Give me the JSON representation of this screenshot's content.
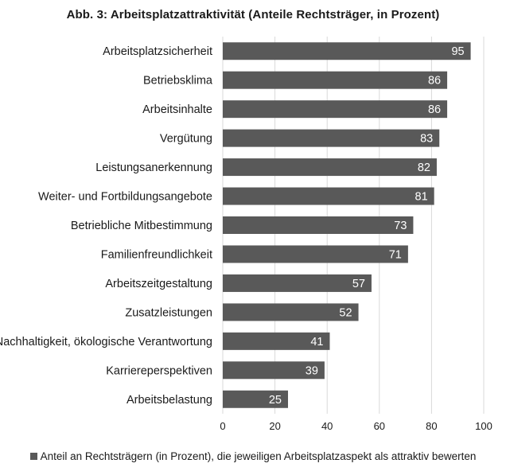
{
  "chart_data": {
    "type": "bar",
    "orientation": "horizontal",
    "title": "Abb. 3: Arbeitsplatzattraktivität (Anteile Rechtsträger, in Prozent)",
    "categories": [
      "Arbeitsplatzsicherheit",
      "Betriebsklima",
      "Arbeitsinhalte",
      "Vergütung",
      "Leistungsanerkennung",
      "Weiter- und Fortbildungsangebote",
      "Betriebliche Mitbestimmung",
      "Familienfreundlichkeit",
      "Arbeitszeitgestaltung",
      "Zusatzleistungen",
      "Nachhaltigkeit, ökologische Verantwortung",
      "Karriereperspektiven",
      "Arbeitsbelastung"
    ],
    "series": [
      {
        "name": "Anteil an Rechtsträgern (in Prozent), die jeweiligen Arbeitsplatzaspekt als attraktiv bewerten",
        "values": [
          95,
          86,
          86,
          83,
          82,
          81,
          73,
          71,
          57,
          52,
          41,
          39,
          25
        ]
      }
    ],
    "x_ticks": [
      0,
      20,
      40,
      60,
      80,
      100
    ],
    "xlim": [
      0,
      100
    ],
    "grid": true,
    "legend_position": "bottom",
    "bar_color": "#595959",
    "grid_color": "#d9d9d9"
  }
}
